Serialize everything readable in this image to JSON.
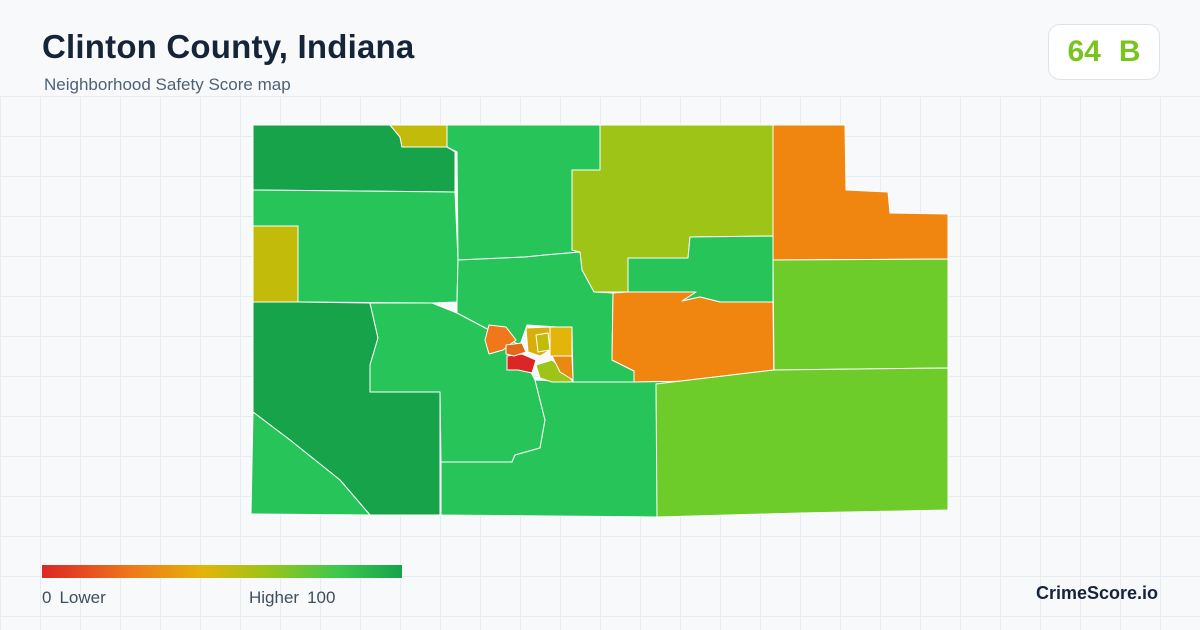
{
  "header": {
    "title": "Clinton County, Indiana",
    "subtitle": "Neighborhood Safety Score map"
  },
  "score": {
    "value": "64",
    "grade": "B",
    "color": "#7ac41f"
  },
  "legend": {
    "min": "0",
    "min_label": "Lower",
    "max_label": "Higher",
    "max": "100",
    "colors": [
      "#dc2626",
      "#f0781a",
      "#e3b40a",
      "#9dc417",
      "#3ec84e",
      "#16a34a"
    ]
  },
  "brand": "CrimeScore.io",
  "map": {
    "regions": [
      {
        "name": "north-west",
        "color": "#16a34a"
      },
      {
        "name": "north-notch",
        "color": "#c2bb0a"
      },
      {
        "name": "north-central",
        "color": "#27c45a"
      },
      {
        "name": "north-east-center",
        "color": "#9dc417"
      },
      {
        "name": "north-east",
        "color": "#f0860f"
      },
      {
        "name": "west-upper",
        "color": "#27c45a"
      },
      {
        "name": "west-notch",
        "color": "#c2bb0a"
      },
      {
        "name": "center-north",
        "color": "#27c45a"
      },
      {
        "name": "center-east-inner",
        "color": "#27c45a"
      },
      {
        "name": "east-center",
        "color": "#f0860f"
      },
      {
        "name": "east-middle",
        "color": "#6dcb2a"
      },
      {
        "name": "south-west-far",
        "color": "#16a34a"
      },
      {
        "name": "south-west-corner",
        "color": "#27c45a"
      },
      {
        "name": "south-central-west",
        "color": "#27c45a"
      },
      {
        "name": "south-central",
        "color": "#27c45a"
      },
      {
        "name": "south-east",
        "color": "#6dcb2a"
      },
      {
        "name": "town-1",
        "color": "#f0781a"
      },
      {
        "name": "town-2",
        "color": "#dc2626"
      },
      {
        "name": "town-3",
        "color": "#e36a1a"
      },
      {
        "name": "town-4",
        "color": "#e3b40a"
      },
      {
        "name": "town-5",
        "color": "#d9ad0c"
      },
      {
        "name": "town-6",
        "color": "#9dc417"
      },
      {
        "name": "town-7",
        "color": "#e88a12"
      },
      {
        "name": "town-8",
        "color": "#c2bb0a"
      }
    ]
  }
}
